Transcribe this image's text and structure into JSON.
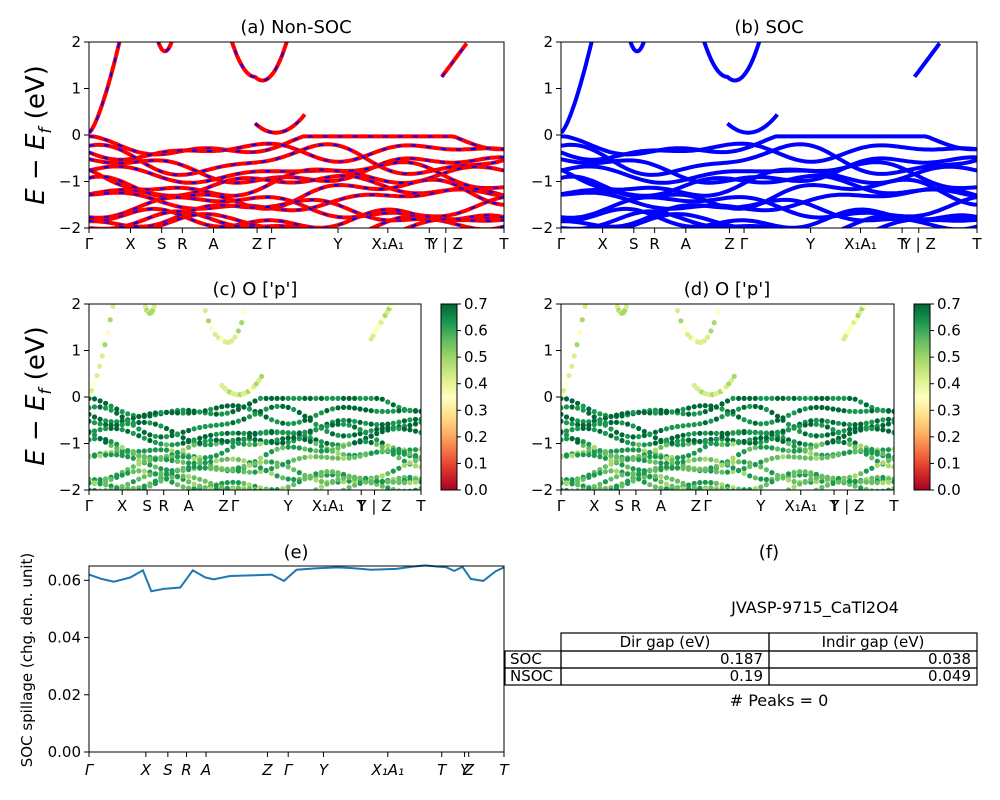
{
  "figure": {
    "ylabel_bands": "E − E_f (eV)",
    "material_id": "JVASP-9715_CaTl2O4",
    "peaks_text": "# Peaks = 0"
  },
  "colors": {
    "nonsoc_red": "#ff0000",
    "soc_blue": "#0000ff",
    "spillage_line": "#1f77b4",
    "cmap": [
      "#a50026",
      "#d73027",
      "#f46d43",
      "#fdae61",
      "#fee08b",
      "#ffffbf",
      "#d9ef8b",
      "#a6d96a",
      "#66bd63",
      "#1a9850",
      "#006837"
    ]
  },
  "chart_data": [
    {
      "id": "a",
      "type": "line",
      "title": "(a) Non-SOC",
      "ylabel": "E − E_f (eV)",
      "ylim": [
        -2,
        2
      ],
      "yticks": [
        "2",
        "1",
        "0",
        "−1",
        "−2"
      ],
      "xticks": [
        "Γ",
        "X",
        "S",
        "R",
        "A",
        "Z",
        "Γ",
        "Y",
        "X₁A₁",
        "T",
        "Y | Z",
        "T"
      ],
      "series": [
        {
          "name": "",
          "color": "#ff0000",
          "style": "solid"
        },
        {
          "name": "",
          "color": "#0000ff",
          "style": "dashed"
        }
      ]
    },
    {
      "id": "b",
      "type": "line",
      "title": "(b) SOC",
      "ylim": [
        -2,
        2
      ],
      "yticks": [
        "2",
        "1",
        "0",
        "−1",
        "−2"
      ],
      "xticks": [
        "Γ",
        "X",
        "S",
        "R",
        "A",
        "Z",
        "Γ",
        "Y",
        "X₁A₁",
        "T",
        "Y | Z",
        "T"
      ],
      "series": [
        {
          "name": "",
          "color": "#0000ff",
          "style": "solid"
        }
      ]
    },
    {
      "id": "c",
      "type": "scatter",
      "title": "(c)  O ['p']",
      "ylabel": "E − E_f (eV)",
      "ylim": [
        -2,
        2
      ],
      "yticks": [
        "2",
        "1",
        "0",
        "−1",
        "−2"
      ],
      "xticks": [
        "Γ",
        "X",
        "S",
        "R",
        "A",
        "Z",
        "Γ",
        "Y",
        "X₁A₁",
        "T",
        "Y | Z",
        "T"
      ],
      "colorbar": {
        "range": [
          0.0,
          0.7
        ],
        "ticks": [
          "0.7",
          "0.6",
          "0.5",
          "0.4",
          "0.3",
          "0.2",
          "0.1",
          "0.0"
        ]
      }
    },
    {
      "id": "d",
      "type": "scatter",
      "title": "(d) O ['p']",
      "ylim": [
        -2,
        2
      ],
      "yticks": [
        "2",
        "1",
        "0",
        "−1",
        "−2"
      ],
      "xticks": [
        "Γ",
        "X",
        "S",
        "R",
        "A",
        "Z",
        "Γ",
        "Y",
        "X₁A₁",
        "T",
        "Y | Z",
        "T"
      ],
      "colorbar": {
        "range": [
          0.0,
          0.7
        ],
        "ticks": [
          "0.7",
          "0.6",
          "0.5",
          "0.4",
          "0.3",
          "0.2",
          "0.1",
          "0.0"
        ]
      }
    },
    {
      "id": "e",
      "type": "line",
      "title": "(e)",
      "ylabel": "SOC spillage (chg. den. unit)",
      "ylim": [
        0,
        0.065
      ],
      "yticks": [
        "0.06",
        "0.04",
        "0.02",
        "0.00"
      ],
      "xticks": [
        "Γ",
        "X",
        "S",
        "R",
        "A",
        "Z",
        "Γ",
        "Y",
        "X₁A₁",
        "T",
        "Y",
        "Z",
        "T"
      ],
      "x": [
        0,
        0.03,
        0.06,
        0.1,
        0.13,
        0.15,
        0.18,
        0.22,
        0.25,
        0.28,
        0.3,
        0.34,
        0.4,
        0.44,
        0.47,
        0.5,
        0.55,
        0.6,
        0.63,
        0.68,
        0.74,
        0.78,
        0.81,
        0.84,
        0.86,
        0.88,
        0.9,
        0.92,
        0.95,
        0.98,
        1.0
      ],
      "y": [
        0.062,
        0.0605,
        0.0595,
        0.061,
        0.0635,
        0.0562,
        0.057,
        0.0575,
        0.0635,
        0.061,
        0.0603,
        0.0615,
        0.0618,
        0.062,
        0.0598,
        0.0637,
        0.0642,
        0.0645,
        0.0643,
        0.0637,
        0.064,
        0.0648,
        0.0652,
        0.0648,
        0.0646,
        0.0633,
        0.0647,
        0.0605,
        0.0598,
        0.0632,
        0.0645
      ],
      "series": [
        {
          "name": "",
          "color": "#1f77b4"
        }
      ]
    },
    {
      "id": "f",
      "type": "table",
      "title": "(f)",
      "caption": "JVASP-9715_CaTl2O4",
      "columns": [
        "Dir gap (eV)",
        "Indir gap (eV)"
      ],
      "rows": [
        {
          "label": "SOC",
          "values": [
            "0.187",
            "0.038"
          ]
        },
        {
          "label": "NSOC",
          "values": [
            "0.19",
            "0.049"
          ]
        }
      ],
      "footer": "# Peaks = 0"
    }
  ]
}
